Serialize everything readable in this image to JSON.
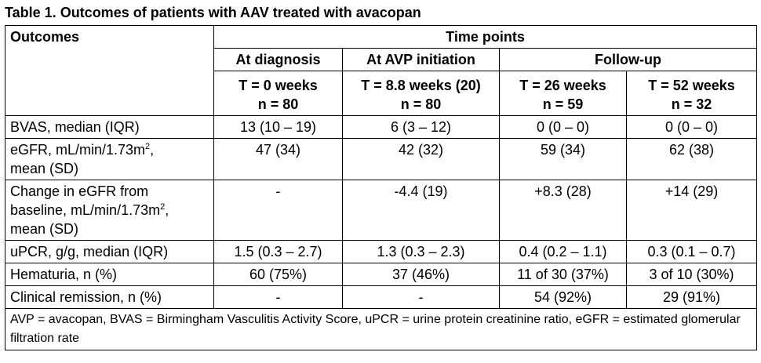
{
  "caption": "Table 1. Outcomes of patients with AAV treated with avacopan",
  "header": {
    "time_points": "Time points",
    "outcomes": "Outcomes",
    "groups": [
      "At diagnosis",
      "At AVP initiation",
      "Follow-up"
    ],
    "columns": [
      {
        "t": "T = 0 weeks",
        "n": "n = 80"
      },
      {
        "t": "T = 8.8 weeks (20)",
        "n": "n = 80"
      },
      {
        "t": "T = 26 weeks",
        "n": "n = 59"
      },
      {
        "t": "T = 52 weeks",
        "n": "n = 32"
      }
    ]
  },
  "rows": [
    {
      "label": "BVAS, median (IQR)",
      "values": [
        "13 (10 – 19)",
        "6 (3 – 12)",
        "0 (0 – 0)",
        "0 (0 – 0)"
      ]
    },
    {
      "label_pre": "eGFR, mL/min/1.73m",
      "label_sup": "2",
      "label_post": ",",
      "label_line2": "mean (SD)",
      "values": [
        "47 (34)",
        "42 (32)",
        "59 (34)",
        "62 (38)"
      ]
    },
    {
      "label_line1": "Change in eGFR from",
      "label_pre": "baseline, mL/min/1.73m",
      "label_sup": "2",
      "label_post": ",",
      "label_line3": "mean (SD)",
      "values": [
        "-",
        "-4.4 (19)",
        "+8.3 (28)",
        "+14 (29)"
      ]
    },
    {
      "label": "uPCR, g/g, median (IQR)",
      "values": [
        "1.5 (0.3 – 2.7)",
        "1.3 (0.3 – 2.3)",
        "0.4 (0.2 – 1.1)",
        "0.3 (0.1 – 0.7)"
      ]
    },
    {
      "label": "Hematuria, n (%)",
      "values": [
        "60 (75%)",
        "37 (46%)",
        "11 of 30 (37%)",
        "3 of 10 (30%)"
      ]
    },
    {
      "label": "Clinical remission, n (%)",
      "values": [
        "-",
        "-",
        "54 (92%)",
        "29 (91%)"
      ]
    }
  ],
  "footnote": "AVP = avacopan, BVAS = Birmingham Vasculitis Activity Score, uPCR = urine protein creatinine ratio, eGFR = estimated glomerular filtration rate"
}
